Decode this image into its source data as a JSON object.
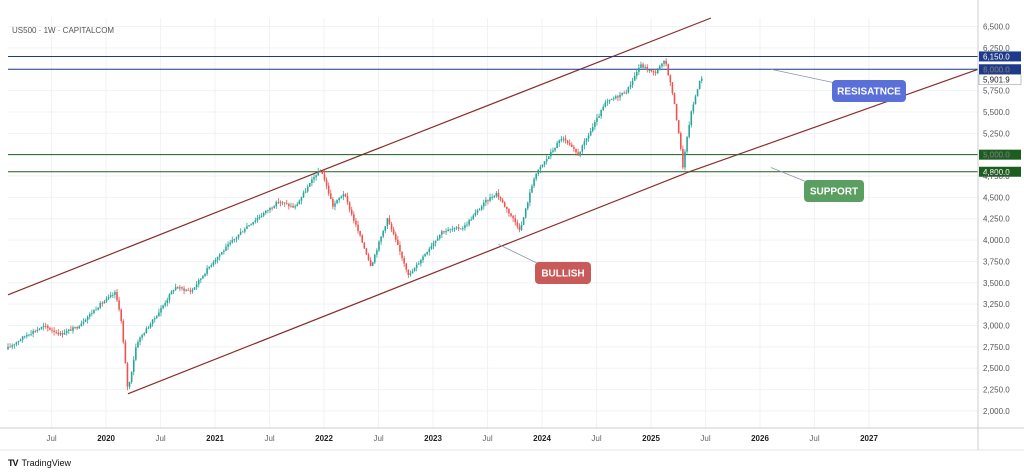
{
  "header": {
    "symbol_title": "US500 · 1W · CAPITALCOM"
  },
  "footer": {
    "brand_icon": "TV",
    "brand_label": "TradingView"
  },
  "chart_data": {
    "type": "candlestick",
    "symbol": "US500",
    "timeframe": "1W",
    "broker": "CAPITALCOM",
    "y_axis": {
      "min": 1800,
      "max": 6600,
      "ticks": [
        2000,
        2250,
        2500,
        2750,
        3000,
        3250,
        3500,
        3750,
        4000,
        4250,
        4500,
        4750,
        5000,
        5250,
        5500,
        5750,
        6000,
        6250,
        6500
      ],
      "tick_labels": [
        "2,000.0",
        "2,250.0",
        "2,500.0",
        "2,750.0",
        "3,000.0",
        "3,250.0",
        "3,500.0",
        "3,750.0",
        "4,000.0",
        "4,250.0",
        "4,500.0",
        "4,750.0",
        "5,000.0",
        "5,250.0",
        "5,500.0",
        "5,750.0",
        "6,000.0",
        "6,250.0",
        "6,500.0"
      ]
    },
    "x_axis": {
      "start": 2019.1,
      "end": 2028.0,
      "ticks": [
        {
          "t": 2019.5,
          "label": "Jul",
          "major": false
        },
        {
          "t": 2020.0,
          "label": "2020",
          "major": true
        },
        {
          "t": 2020.5,
          "label": "Jul",
          "major": false
        },
        {
          "t": 2021.0,
          "label": "2021",
          "major": true
        },
        {
          "t": 2021.5,
          "label": "Jul",
          "major": false
        },
        {
          "t": 2022.0,
          "label": "2022",
          "major": true
        },
        {
          "t": 2022.5,
          "label": "Jul",
          "major": false
        },
        {
          "t": 2023.0,
          "label": "2023",
          "major": true
        },
        {
          "t": 2023.5,
          "label": "Jul",
          "major": false
        },
        {
          "t": 2024.0,
          "label": "2024",
          "major": true
        },
        {
          "t": 2024.5,
          "label": "Jul",
          "major": false
        },
        {
          "t": 2025.0,
          "label": "2025",
          "major": true
        },
        {
          "t": 2025.5,
          "label": "Jul",
          "major": false
        },
        {
          "t": 2026.0,
          "label": "2026",
          "major": true
        },
        {
          "t": 2026.5,
          "label": "Jul",
          "major": false
        },
        {
          "t": 2027.0,
          "label": "2027",
          "major": true
        }
      ]
    },
    "price_path": [
      [
        2019.1,
        2720
      ],
      [
        2019.3,
        2900
      ],
      [
        2019.45,
        2990
      ],
      [
        2019.6,
        2900
      ],
      [
        2019.75,
        2980
      ],
      [
        2019.95,
        3230
      ],
      [
        2020.1,
        3380
      ],
      [
        2020.15,
        3150
      ],
      [
        2020.22,
        2230
      ],
      [
        2020.3,
        2800
      ],
      [
        2020.5,
        3150
      ],
      [
        2020.65,
        3450
      ],
      [
        2020.8,
        3400
      ],
      [
        2021.0,
        3750
      ],
      [
        2021.3,
        4150
      ],
      [
        2021.6,
        4450
      ],
      [
        2021.75,
        4380
      ],
      [
        2021.95,
        4780
      ],
      [
        2022.0,
        4800
      ],
      [
        2022.1,
        4400
      ],
      [
        2022.2,
        4550
      ],
      [
        2022.45,
        3700
      ],
      [
        2022.6,
        4250
      ],
      [
        2022.8,
        3580
      ],
      [
        2022.95,
        3850
      ],
      [
        2023.1,
        4100
      ],
      [
        2023.3,
        4150
      ],
      [
        2023.5,
        4450
      ],
      [
        2023.6,
        4550
      ],
      [
        2023.82,
        4120
      ],
      [
        2023.95,
        4750
      ],
      [
        2024.2,
        5200
      ],
      [
        2024.35,
        5000
      ],
      [
        2024.6,
        5600
      ],
      [
        2024.8,
        5750
      ],
      [
        2024.92,
        6050
      ],
      [
        2025.05,
        5950
      ],
      [
        2025.15,
        6100
      ],
      [
        2025.22,
        5700
      ],
      [
        2025.28,
        5200
      ],
      [
        2025.31,
        4850
      ],
      [
        2025.38,
        5450
      ],
      [
        2025.45,
        5800
      ],
      [
        2025.48,
        5901.9
      ]
    ],
    "horizontal_levels": [
      {
        "name": "resistance-upper",
        "value": 6150,
        "label": "6,150.0",
        "color": "#1e3a8a"
      },
      {
        "name": "resistance-lower",
        "value": 6000,
        "label": "6,000.0",
        "color": "#1e3a8a"
      },
      {
        "name": "support-upper",
        "value": 5000,
        "label": "5,000.0",
        "color": "#1b5e20"
      },
      {
        "name": "support-lower",
        "value": 4800,
        "label": "4,800.0",
        "color": "#1b5e20"
      }
    ],
    "last_price": {
      "value": 5901.9,
      "label": "5,901.9"
    },
    "trend_channel": {
      "color": "#8b2c2c",
      "upper_line": [
        [
          2019.1,
          3360
        ],
        [
          2021.95,
          4800
        ],
        [
          2025.55,
          6600
        ]
      ],
      "lower_line": [
        [
          2020.2,
          2200
        ],
        [
          2025.35,
          4800
        ],
        [
          2028.0,
          6000
        ]
      ]
    },
    "annotations": [
      {
        "name": "resistance-label",
        "text": "RESISATNCE",
        "color": "#5a6fd8",
        "pointer": [
          2026.1,
          6000
        ]
      },
      {
        "name": "support-label",
        "text": "SUPPORT",
        "color": "#5a9e62",
        "pointer": [
          2026.1,
          4850
        ]
      },
      {
        "name": "bullish-label",
        "text": "BULLISH",
        "color": "#c95a5a",
        "pointer": [
          2023.6,
          3950
        ]
      }
    ]
  }
}
